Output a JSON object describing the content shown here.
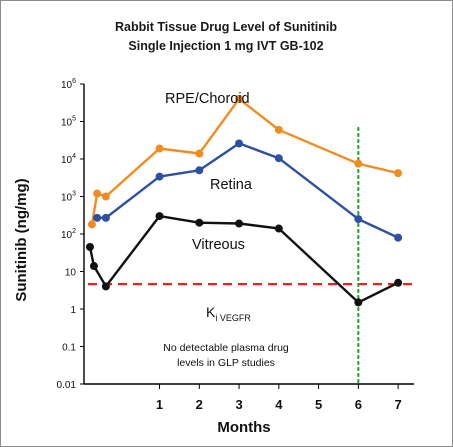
{
  "chart_data": {
    "type": "line",
    "title": "Rabbit Tissue Drug Level of Sunitinib",
    "subtitle": "Single Injection 1 mg IVT GB-102",
    "xlabel": "Months",
    "ylabel": "Sunitinib (ng/mg)",
    "xlim": [
      -0.9,
      7.4
    ],
    "ylim": [
      0.01,
      1000000
    ],
    "y_scale": "log",
    "x_ticks": [
      1,
      2,
      3,
      4,
      5,
      6,
      7
    ],
    "y_ticks": [
      0.01,
      0.1,
      1,
      10,
      100,
      1000,
      10000,
      100000,
      1000000
    ],
    "y_tick_labels": [
      {
        "base": "0.01",
        "exp": ""
      },
      {
        "base": "0.1",
        "exp": ""
      },
      {
        "base": "1",
        "exp": ""
      },
      {
        "base": "10",
        "exp": ""
      },
      {
        "base": "10",
        "exp": "2"
      },
      {
        "base": "10",
        "exp": "3"
      },
      {
        "base": "10",
        "exp": "4"
      },
      {
        "base": "10",
        "exp": "5"
      },
      {
        "base": "10",
        "exp": "6"
      }
    ],
    "series": [
      {
        "name": "RPE/Choroid",
        "color": "#f28c1e",
        "x": [
          -0.7,
          -0.57,
          -0.35,
          1,
          2,
          3,
          4,
          6,
          7
        ],
        "y": [
          180,
          1200,
          1000,
          19000,
          14000,
          400000,
          60000,
          7500,
          4200
        ]
      },
      {
        "name": "Retina",
        "color": "#2e4fa3",
        "x": [
          -0.57,
          -0.35,
          1,
          2,
          3,
          4,
          6,
          7
        ],
        "y": [
          270,
          270,
          3400,
          5000,
          26000,
          10500,
          250,
          80
        ]
      },
      {
        "name": "Vitreous",
        "color": "#111111",
        "x": [
          -0.75,
          -0.65,
          -0.35,
          1,
          2,
          3,
          4,
          6,
          7
        ],
        "y": [
          45,
          14,
          4,
          300,
          200,
          190,
          140,
          1.5,
          5
        ]
      }
    ],
    "reference_lines": [
      {
        "orientation": "horizontal",
        "value": 4.6,
        "color": "#e8231f",
        "style": "dashed",
        "label": "K",
        "label_sub": "i VEGFR"
      },
      {
        "orientation": "vertical",
        "value": 6,
        "color": "#26a83a",
        "style": "dotted"
      }
    ],
    "annotations": [
      "No detectable plasma drug",
      "levels in GLP studies"
    ],
    "grid": false,
    "legend": "none"
  },
  "colors": {
    "rpe": "#f28c1e",
    "retina": "#2e4fa3",
    "vitreous": "#111111",
    "ki_line": "#e8231f",
    "month6_line": "#26a83a"
  }
}
